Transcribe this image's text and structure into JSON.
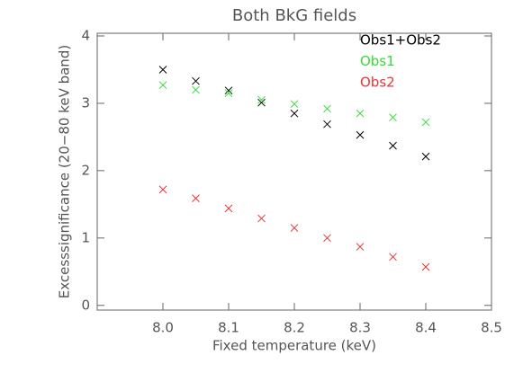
{
  "chart_data": {
    "type": "scatter",
    "title": "Both BkG fields",
    "x_label": "Fixed temperature (keV)",
    "y_label": "Excesssignificance (20−80 keV band)",
    "x": [
      8.0,
      8.05,
      8.1,
      8.15,
      8.2,
      8.25,
      8.3,
      8.35,
      8.4
    ],
    "series": [
      {
        "name": "Obs1+Obs2",
        "color": "#000000",
        "values": [
          3.5,
          3.33,
          3.19,
          3.01,
          2.85,
          2.69,
          2.53,
          2.37,
          2.21
        ]
      },
      {
        "name": "Obs1",
        "color": "#33dd33",
        "values": [
          3.27,
          3.2,
          3.15,
          3.05,
          2.99,
          2.92,
          2.85,
          2.79,
          2.72
        ]
      },
      {
        "name": "Obs2",
        "color": "#ee3333",
        "values": [
          1.72,
          1.59,
          1.44,
          1.29,
          1.15,
          1.0,
          0.87,
          0.72,
          0.57
        ]
      }
    ],
    "xlim": [
      7.9,
      8.5
    ],
    "xticks": [
      {
        "value": 8,
        "label": "8.0"
      },
      8.1,
      8.2,
      8.3,
      8.4,
      8.5
    ],
    "ylim": [
      -0.07,
      4.04
    ],
    "yticks": [
      0,
      1,
      2,
      3,
      4
    ],
    "legend": "upper right"
  }
}
